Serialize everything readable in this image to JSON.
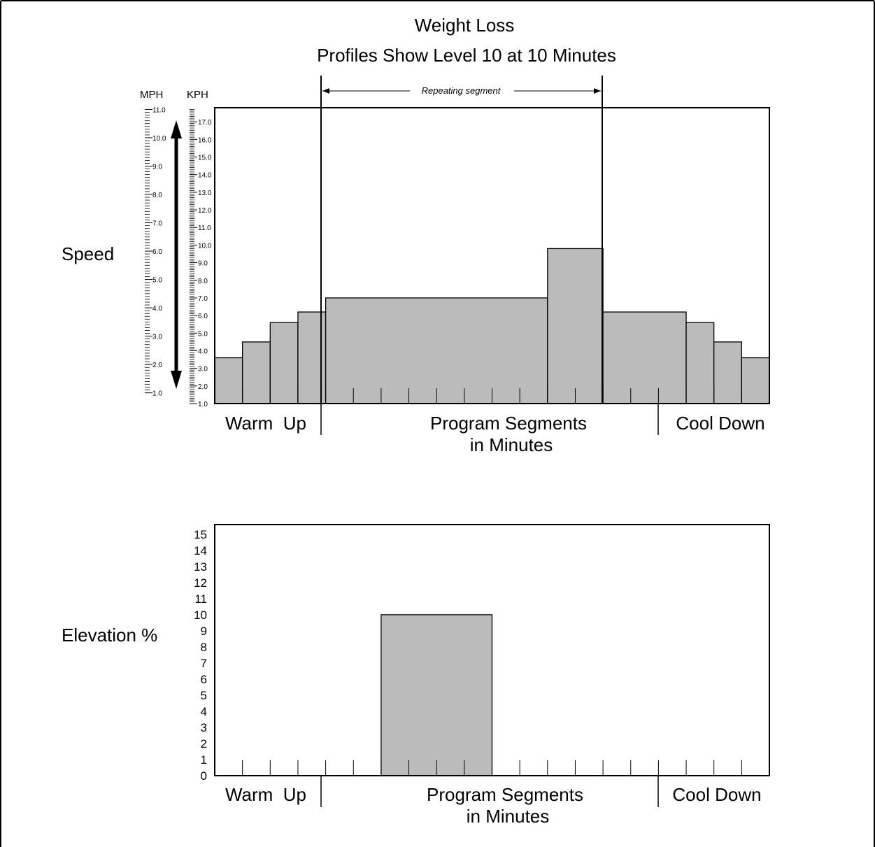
{
  "title": "Weight Loss",
  "subtitle": "Profiles Show Level 10 at 10 Minutes",
  "colors": {
    "bar": "#bbbbbb",
    "line": "#000000",
    "background": "#ffffff"
  },
  "phases": {
    "warm_up": "Warm  Up",
    "segments_line1": "Program Segments",
    "segments_line2": "in Minutes",
    "cool_down": "Cool Down"
  },
  "repeating_label": "Repeating segment",
  "chart_data": [
    {
      "type": "bar",
      "name_label": "Speed",
      "units": [
        "MPH",
        "KPH"
      ],
      "mph_ticks": [
        "1.0",
        "2.0",
        "3.0",
        "4.0",
        "5.0",
        "6.0",
        "7.0",
        "8.0",
        "9.0",
        "10.0",
        "11.0"
      ],
      "kph_ticks": [
        "1.0",
        "2.0",
        "3.0",
        "4.0",
        "5.0",
        "6.0",
        "7.0",
        "8.0",
        "9.0",
        "10.0",
        "11.0",
        "12.0",
        "13.0",
        "14.0",
        "15.0",
        "16.0",
        "17.0"
      ],
      "x_segments": 20,
      "ylim_kph": [
        1.0,
        17.8
      ],
      "repeating_segment_range": [
        4,
        14
      ],
      "steps": [
        {
          "from": 0,
          "to": 1,
          "kph": 3.6
        },
        {
          "from": 1,
          "to": 2,
          "kph": 4.5
        },
        {
          "from": 2,
          "to": 3,
          "kph": 5.6
        },
        {
          "from": 3,
          "to": 4,
          "kph": 6.2
        },
        {
          "from": 4,
          "to": 12,
          "kph": 7.0
        },
        {
          "from": 12,
          "to": 14,
          "kph": 9.8
        },
        {
          "from": 14,
          "to": 17,
          "kph": 6.2
        },
        {
          "from": 17,
          "to": 18,
          "kph": 5.6
        },
        {
          "from": 18,
          "to": 19,
          "kph": 4.5
        },
        {
          "from": 19,
          "to": 20,
          "kph": 3.6
        }
      ]
    },
    {
      "type": "bar",
      "name_label": "Elevation %",
      "y_ticks": [
        "0",
        "1",
        "2",
        "3",
        "4",
        "5",
        "6",
        "7",
        "8",
        "9",
        "10",
        "11",
        "12",
        "13",
        "14",
        "15"
      ],
      "x_segments": 20,
      "ylim": [
        0,
        15.6
      ],
      "steps": [
        {
          "from": 6,
          "to": 10,
          "value": 10
        }
      ]
    }
  ]
}
